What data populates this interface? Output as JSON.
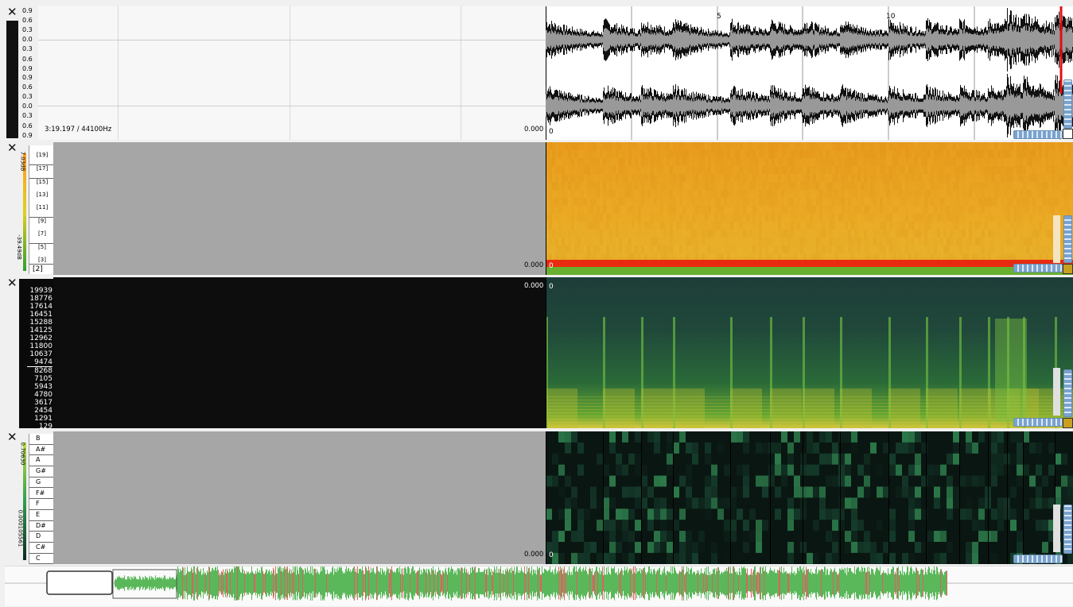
{
  "waveform_pane": {
    "close": "✕",
    "scale_top": [
      "0.9",
      "0.6",
      "0.3",
      "0.0",
      "0.3",
      "0.6",
      "0.9"
    ],
    "scale_bottom": [
      "0.9",
      "0.6",
      "0.3",
      "0.0",
      "0.3",
      "0.6",
      "0.9"
    ],
    "duration_info": "3:19.197 / 44100Hz",
    "value_readout": "0.000",
    "ruler_labels": [
      "5",
      "10"
    ],
    "origin_label": "0"
  },
  "spectrum_pane": {
    "close": "✕",
    "side_top": "7.03dB",
    "side_bottom": "-39.49dB",
    "bins": [
      "[19]",
      "[17]",
      "[15]",
      "[13]",
      "[11]",
      "[9]",
      "[7]",
      "[5]",
      "[3]"
    ],
    "bottom_bin": "[2]",
    "value_readout": "0.000",
    "origin_label": "0"
  },
  "spectrogram_pane": {
    "close": "✕",
    "frequencies": [
      "19939",
      "18776",
      "17614",
      "16451",
      "15288",
      "14125",
      "12962",
      "11800",
      "10637",
      "9474",
      "8268",
      "7105",
      "5943",
      "4780",
      "3617",
      "2454",
      "1291",
      "129"
    ],
    "value_readout": "0.000",
    "origin_label": "0"
  },
  "chroma_pane": {
    "close": "✕",
    "side_top": "0.70630",
    "side_bottom": "0.000105561",
    "notes": [
      "B",
      "A#",
      "A",
      "G#",
      "G",
      "F#",
      "F",
      "E",
      "D#",
      "D",
      "C#",
      "C"
    ],
    "value_readout": "0.000",
    "origin_label": "0"
  },
  "colors": {
    "waveform": "#000000",
    "spectrum": "#e8a020",
    "spectrogram": "#1f4a3a",
    "chroma": "#0a1612",
    "overview": "#5ab85a",
    "playhead": "#e01010"
  }
}
